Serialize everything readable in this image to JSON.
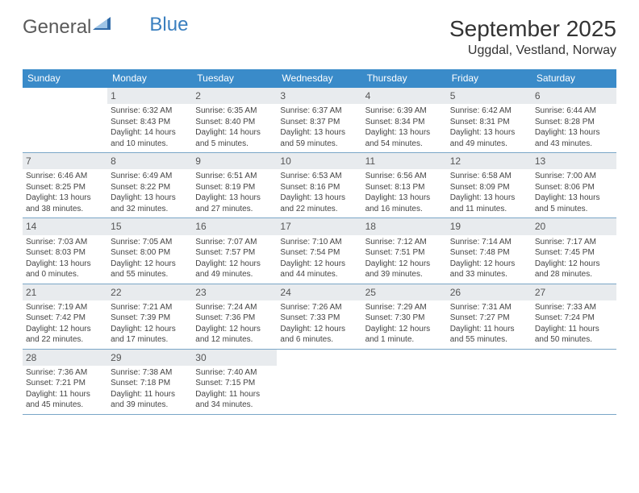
{
  "logo": {
    "part1": "General",
    "part2": "Blue"
  },
  "title": "September 2025",
  "location": "Uggdal, Vestland, Norway",
  "colors": {
    "header_bg": "#3a8bc9",
    "shade_bg": "#e8ebee",
    "border": "#7aa6c7",
    "logo_gray": "#5a5a5a",
    "logo_blue": "#3a7fbf"
  },
  "day_headers": [
    "Sunday",
    "Monday",
    "Tuesday",
    "Wednesday",
    "Thursday",
    "Friday",
    "Saturday"
  ],
  "weeks": [
    [
      {
        "n": "",
        "lines": []
      },
      {
        "n": "1",
        "lines": [
          "Sunrise: 6:32 AM",
          "Sunset: 8:43 PM",
          "Daylight: 14 hours and 10 minutes."
        ]
      },
      {
        "n": "2",
        "lines": [
          "Sunrise: 6:35 AM",
          "Sunset: 8:40 PM",
          "Daylight: 14 hours and 5 minutes."
        ]
      },
      {
        "n": "3",
        "lines": [
          "Sunrise: 6:37 AM",
          "Sunset: 8:37 PM",
          "Daylight: 13 hours and 59 minutes."
        ]
      },
      {
        "n": "4",
        "lines": [
          "Sunrise: 6:39 AM",
          "Sunset: 8:34 PM",
          "Daylight: 13 hours and 54 minutes."
        ]
      },
      {
        "n": "5",
        "lines": [
          "Sunrise: 6:42 AM",
          "Sunset: 8:31 PM",
          "Daylight: 13 hours and 49 minutes."
        ]
      },
      {
        "n": "6",
        "lines": [
          "Sunrise: 6:44 AM",
          "Sunset: 8:28 PM",
          "Daylight: 13 hours and 43 minutes."
        ]
      }
    ],
    [
      {
        "n": "7",
        "lines": [
          "Sunrise: 6:46 AM",
          "Sunset: 8:25 PM",
          "Daylight: 13 hours and 38 minutes."
        ]
      },
      {
        "n": "8",
        "lines": [
          "Sunrise: 6:49 AM",
          "Sunset: 8:22 PM",
          "Daylight: 13 hours and 32 minutes."
        ]
      },
      {
        "n": "9",
        "lines": [
          "Sunrise: 6:51 AM",
          "Sunset: 8:19 PM",
          "Daylight: 13 hours and 27 minutes."
        ]
      },
      {
        "n": "10",
        "lines": [
          "Sunrise: 6:53 AM",
          "Sunset: 8:16 PM",
          "Daylight: 13 hours and 22 minutes."
        ]
      },
      {
        "n": "11",
        "lines": [
          "Sunrise: 6:56 AM",
          "Sunset: 8:13 PM",
          "Daylight: 13 hours and 16 minutes."
        ]
      },
      {
        "n": "12",
        "lines": [
          "Sunrise: 6:58 AM",
          "Sunset: 8:09 PM",
          "Daylight: 13 hours and 11 minutes."
        ]
      },
      {
        "n": "13",
        "lines": [
          "Sunrise: 7:00 AM",
          "Sunset: 8:06 PM",
          "Daylight: 13 hours and 5 minutes."
        ]
      }
    ],
    [
      {
        "n": "14",
        "lines": [
          "Sunrise: 7:03 AM",
          "Sunset: 8:03 PM",
          "Daylight: 13 hours and 0 minutes."
        ]
      },
      {
        "n": "15",
        "lines": [
          "Sunrise: 7:05 AM",
          "Sunset: 8:00 PM",
          "Daylight: 12 hours and 55 minutes."
        ]
      },
      {
        "n": "16",
        "lines": [
          "Sunrise: 7:07 AM",
          "Sunset: 7:57 PM",
          "Daylight: 12 hours and 49 minutes."
        ]
      },
      {
        "n": "17",
        "lines": [
          "Sunrise: 7:10 AM",
          "Sunset: 7:54 PM",
          "Daylight: 12 hours and 44 minutes."
        ]
      },
      {
        "n": "18",
        "lines": [
          "Sunrise: 7:12 AM",
          "Sunset: 7:51 PM",
          "Daylight: 12 hours and 39 minutes."
        ]
      },
      {
        "n": "19",
        "lines": [
          "Sunrise: 7:14 AM",
          "Sunset: 7:48 PM",
          "Daylight: 12 hours and 33 minutes."
        ]
      },
      {
        "n": "20",
        "lines": [
          "Sunrise: 7:17 AM",
          "Sunset: 7:45 PM",
          "Daylight: 12 hours and 28 minutes."
        ]
      }
    ],
    [
      {
        "n": "21",
        "lines": [
          "Sunrise: 7:19 AM",
          "Sunset: 7:42 PM",
          "Daylight: 12 hours and 22 minutes."
        ]
      },
      {
        "n": "22",
        "lines": [
          "Sunrise: 7:21 AM",
          "Sunset: 7:39 PM",
          "Daylight: 12 hours and 17 minutes."
        ]
      },
      {
        "n": "23",
        "lines": [
          "Sunrise: 7:24 AM",
          "Sunset: 7:36 PM",
          "Daylight: 12 hours and 12 minutes."
        ]
      },
      {
        "n": "24",
        "lines": [
          "Sunrise: 7:26 AM",
          "Sunset: 7:33 PM",
          "Daylight: 12 hours and 6 minutes."
        ]
      },
      {
        "n": "25",
        "lines": [
          "Sunrise: 7:29 AM",
          "Sunset: 7:30 PM",
          "Daylight: 12 hours and 1 minute."
        ]
      },
      {
        "n": "26",
        "lines": [
          "Sunrise: 7:31 AM",
          "Sunset: 7:27 PM",
          "Daylight: 11 hours and 55 minutes."
        ]
      },
      {
        "n": "27",
        "lines": [
          "Sunrise: 7:33 AM",
          "Sunset: 7:24 PM",
          "Daylight: 11 hours and 50 minutes."
        ]
      }
    ],
    [
      {
        "n": "28",
        "lines": [
          "Sunrise: 7:36 AM",
          "Sunset: 7:21 PM",
          "Daylight: 11 hours and 45 minutes."
        ]
      },
      {
        "n": "29",
        "lines": [
          "Sunrise: 7:38 AM",
          "Sunset: 7:18 PM",
          "Daylight: 11 hours and 39 minutes."
        ]
      },
      {
        "n": "30",
        "lines": [
          "Sunrise: 7:40 AM",
          "Sunset: 7:15 PM",
          "Daylight: 11 hours and 34 minutes."
        ]
      },
      {
        "n": "",
        "lines": []
      },
      {
        "n": "",
        "lines": []
      },
      {
        "n": "",
        "lines": []
      },
      {
        "n": "",
        "lines": []
      }
    ]
  ]
}
